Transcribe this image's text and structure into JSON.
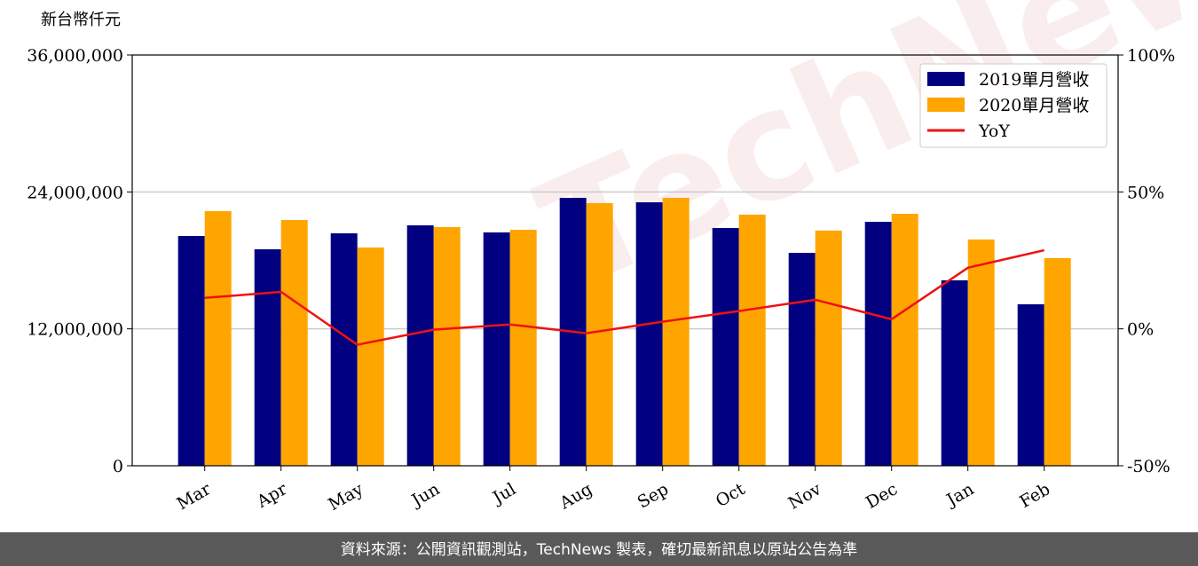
{
  "chart_data": {
    "type": "bar_line",
    "y_axis_label": "新台幣仟元",
    "watermark": "TechNews",
    "source": "資料來源：公開資訊觀測站，TechNews 製表，確切最新訊息以原站公告為準",
    "categories": [
      "Mar",
      "Apr",
      "May",
      "Jun",
      "Jul",
      "Aug",
      "Sep",
      "Oct",
      "Nov",
      "Dec",
      "Jan",
      "Feb"
    ],
    "series": [
      {
        "name": "2019單月營收",
        "color": "#000080",
        "type": "bar",
        "values": [
          20140000,
          18970000,
          20370000,
          21070000,
          20450000,
          23480000,
          23090000,
          20840000,
          18660000,
          21380000,
          16250000,
          14150000
        ]
      },
      {
        "name": "2020單月營收",
        "color": "#ffa500",
        "type": "bar",
        "values": [
          22320000,
          21540000,
          19130000,
          20920000,
          20680000,
          23020000,
          23480000,
          22010000,
          20610000,
          22080000,
          19830000,
          18200000
        ]
      },
      {
        "name": "YoY",
        "color": "#ee1111",
        "type": "line",
        "axis": "y2",
        "values": [
          11.3,
          13.5,
          -5.8,
          -0.3,
          1.6,
          -1.6,
          2.6,
          6.5,
          10.6,
          3.5,
          22.3,
          28.7
        ]
      }
    ],
    "ylim": [
      0,
      36000000
    ],
    "yticks": [
      0,
      {
        "value": 12000000,
        "label": "12,000,000"
      },
      {
        "value": 24000000,
        "label": "24,000,000"
      },
      {
        "value": 36000000,
        "label": "36,000,000"
      }
    ],
    "y2lim": [
      -50,
      100
    ],
    "y2ticks": [
      {
        "value": -50,
        "label": "-50%"
      },
      {
        "value": 0,
        "label": "0%"
      },
      {
        "value": 50,
        "label": "50%"
      },
      {
        "value": 100,
        "label": "100%"
      }
    ],
    "grid": true,
    "legend": "upper right"
  }
}
